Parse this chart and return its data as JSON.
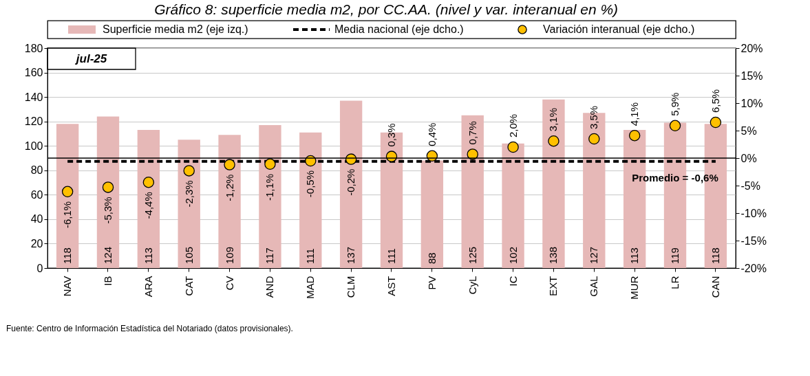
{
  "chart_data": {
    "type": "bar",
    "title": "Gráfico 8: superficie media m2, por CC.AA. (nivel y var. interanual en %)",
    "categories": [
      "NAV",
      "IB",
      "ARA",
      "CAT",
      "CV",
      "AND",
      "MAD",
      "CLM",
      "AST",
      "PV",
      "CyL",
      "IC",
      "EXT",
      "GAL",
      "MUR",
      "LR",
      "CAN"
    ],
    "series": [
      {
        "name": "Superficie media m2 (eje izq.)",
        "color": "#e6b8b7",
        "values": [
          118,
          124,
          113,
          105,
          109,
          117,
          111,
          137,
          111,
          88,
          125,
          102,
          138,
          127,
          113,
          119,
          118
        ],
        "value_labels": [
          "118",
          "124",
          "113",
          "105",
          "109",
          "117",
          "111",
          "137",
          "111",
          "88",
          "125",
          "102",
          "138",
          "127",
          "113",
          "119",
          "118"
        ]
      },
      {
        "name": "Media nacional (eje dcho.)",
        "type": "line",
        "axis": "y2",
        "color": "#000000",
        "line_style": "dashed",
        "marker": "none",
        "values": [
          -0.6,
          -0.6,
          -0.6,
          -0.6,
          -0.6,
          -0.6,
          -0.6,
          -0.6,
          -0.6,
          -0.6,
          -0.6,
          -0.6,
          -0.6,
          -0.6,
          -0.6,
          -0.6,
          -0.6
        ],
        "value_labels": [
          null,
          null,
          null,
          null,
          null,
          null,
          null,
          null,
          null,
          null,
          null,
          null,
          null,
          null,
          null,
          "Promedio = -0,6%",
          null
        ]
      },
      {
        "name": "Variación interanual (eje dcho.)",
        "type": "scatter",
        "axis": "y2",
        "color": "#ffc000",
        "marker": "circle",
        "values": [
          -6.1,
          -5.3,
          -4.4,
          -2.3,
          -1.2,
          -1.1,
          -0.5,
          -0.2,
          0.3,
          0.4,
          0.7,
          2.0,
          3.1,
          3.5,
          4.1,
          5.9,
          6.5
        ],
        "value_labels": [
          "-6,1%",
          "-5,3%",
          "-4,4%",
          "-2,3%",
          "-1,2%",
          "-1,1%",
          "-0,5%",
          "-0,2%",
          "0,3%",
          "0,4%",
          "0,7%",
          "2,0%",
          "3,1%",
          "3,5%",
          "4,1%",
          "5,9%",
          "6,5%"
        ]
      }
    ],
    "ylim": [
      0,
      180
    ],
    "yticks": [
      0,
      20,
      40,
      60,
      80,
      100,
      120,
      140,
      160,
      180
    ],
    "y2lim": [
      -20,
      20
    ],
    "y2ticks": [
      {
        "value": -20,
        "label": "-20%"
      },
      {
        "value": -15,
        "label": "-15%"
      },
      {
        "value": -10,
        "label": "-10%"
      },
      {
        "value": -5,
        "label": "-5%"
      },
      {
        "value": 0,
        "label": "0%"
      },
      {
        "value": 5,
        "label": "5%"
      },
      {
        "value": 10,
        "label": "10%"
      },
      {
        "value": 15,
        "label": "15%"
      },
      {
        "value": 20,
        "label": "20%"
      }
    ],
    "ref_lines": [
      {
        "axis": "y2",
        "value": 0,
        "color": "#000000",
        "line_style": "solid"
      }
    ],
    "grid": "y",
    "legend": "top",
    "annotations": [
      "jul-25",
      "Fuente: Centro de Información Estadística del Notariado (datos provisionales)."
    ]
  }
}
